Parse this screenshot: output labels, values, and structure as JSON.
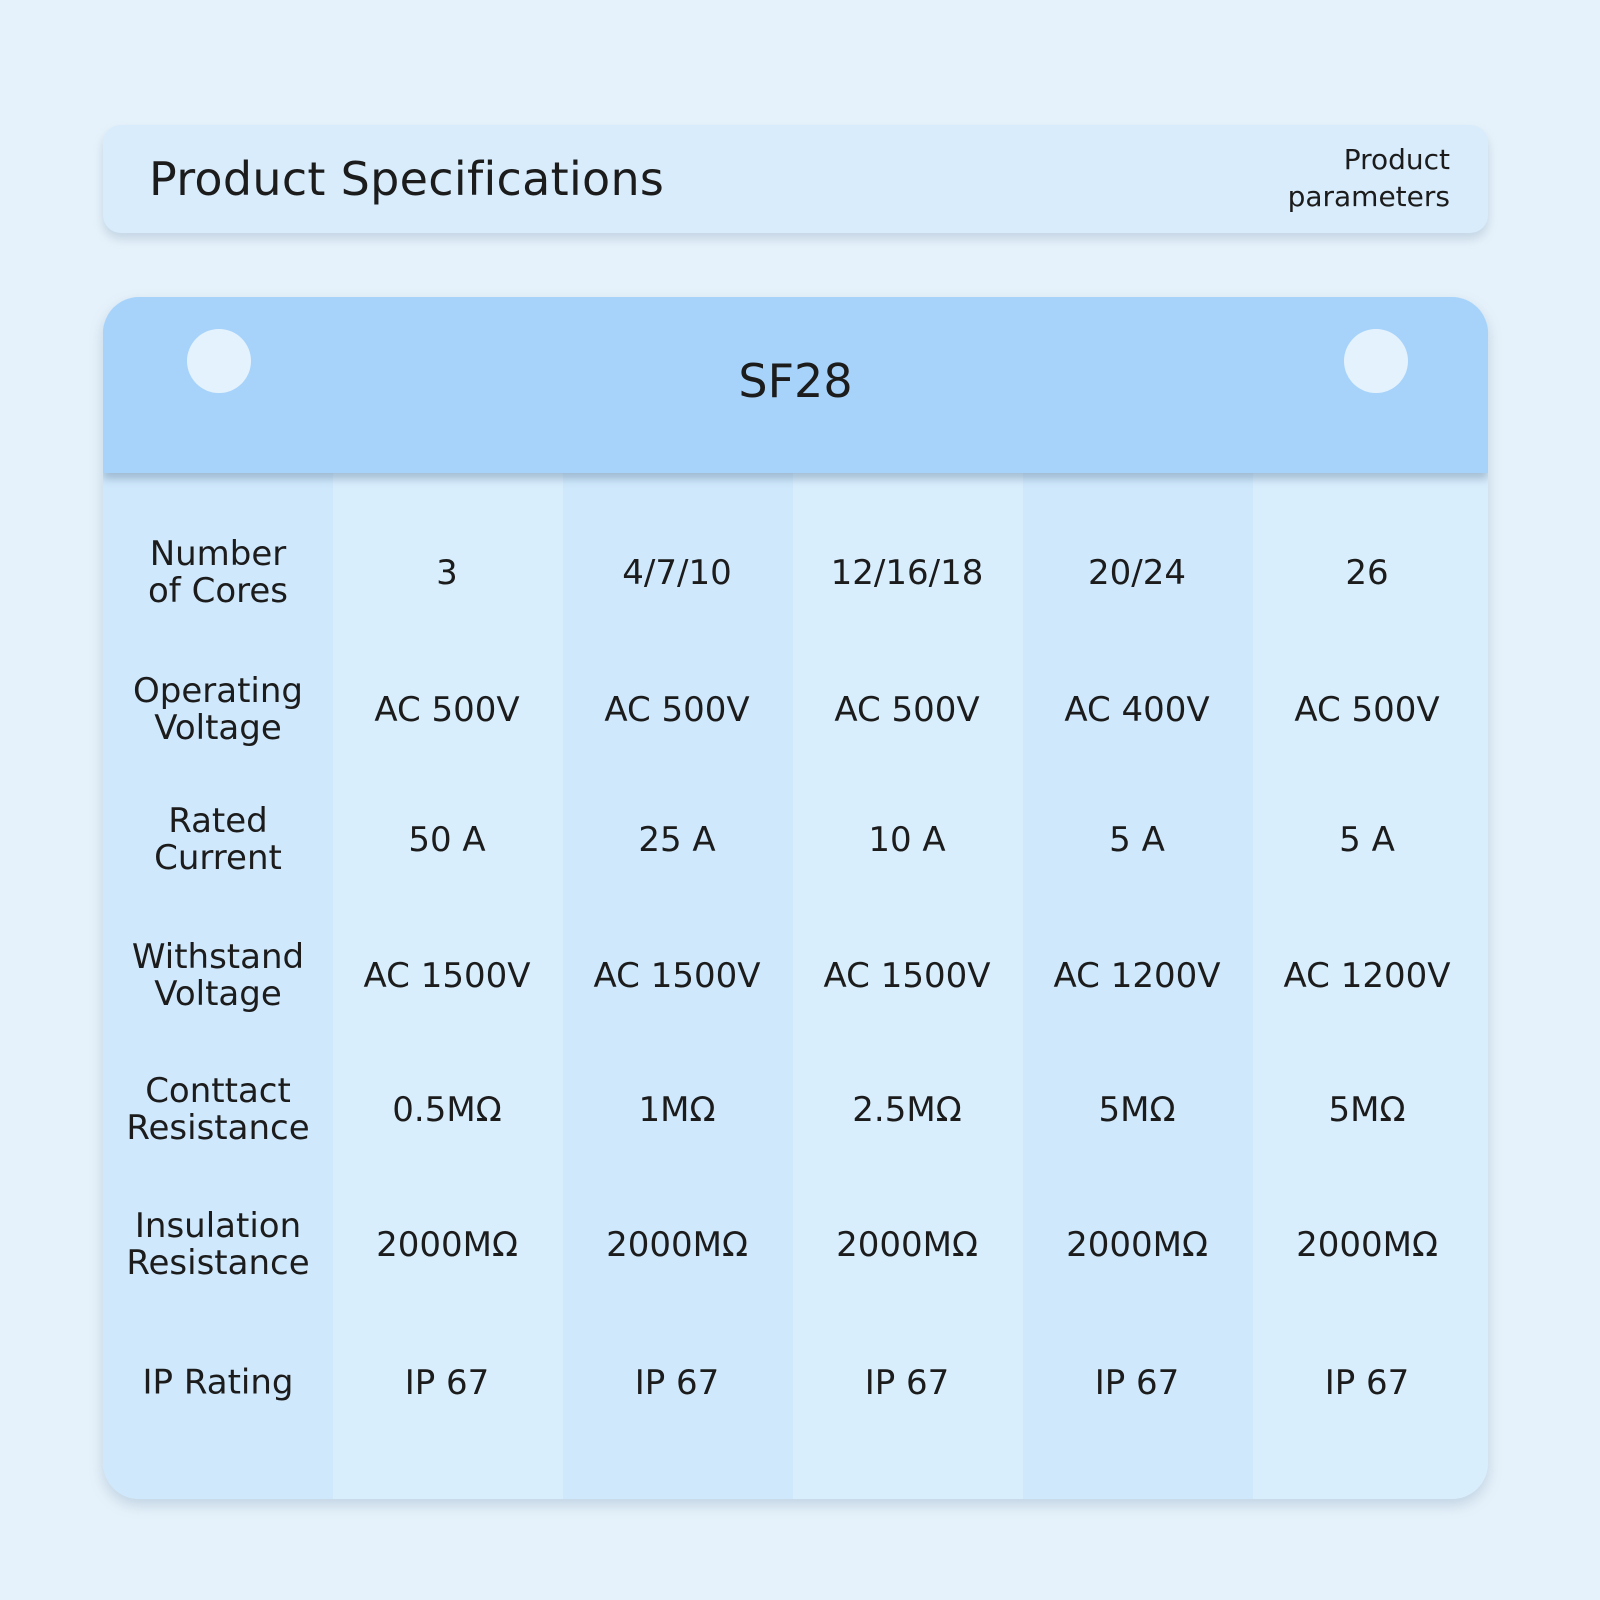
{
  "header": {
    "title": "Product Specifications",
    "subtitle_line1": "Product",
    "subtitle_line2": "parameters"
  },
  "table": {
    "model": "SF28",
    "rows": [
      {
        "label_line1": "Number",
        "label_line2": "of Cores",
        "values": [
          "3",
          "4/7/10",
          "12/16/18",
          "20/24",
          "26"
        ]
      },
      {
        "label_line1": "Operating",
        "label_line2": "Voltage",
        "values": [
          "AC 500V",
          "AC 500V",
          "AC 500V",
          "AC 400V",
          "AC 500V"
        ]
      },
      {
        "label_line1": "Rated",
        "label_line2": "Current",
        "values": [
          "50 A",
          "25 A",
          "10 A",
          "5 A",
          "5 A"
        ]
      },
      {
        "label_line1": "Withstand",
        "label_line2": "Voltage",
        "values": [
          "AC 1500V",
          "AC 1500V",
          "AC 1500V",
          "AC 1200V",
          "AC 1200V"
        ]
      },
      {
        "label_line1": "Conttact",
        "label_line2": "Resistance",
        "values": [
          "0.5MΩ",
          "1MΩ",
          "2.5MΩ",
          "5MΩ",
          "5MΩ"
        ]
      },
      {
        "label_line1": "Insulation",
        "label_line2": "Resistance",
        "values": [
          "2000MΩ",
          "2000MΩ",
          "2000MΩ",
          "2000MΩ",
          "2000MΩ"
        ]
      },
      {
        "label_line1": "IP Rating",
        "label_line2": "",
        "values": [
          "IP 67",
          "IP 67",
          "IP 67",
          "IP 67",
          "IP 67"
        ]
      }
    ]
  }
}
